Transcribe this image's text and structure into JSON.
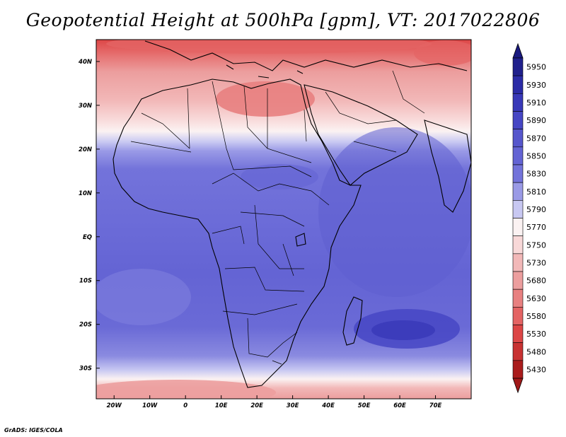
{
  "title": "Geopotential Height at 500hPa [gpm], VT: 2017022806",
  "credit": "GrADS: IGES/COLA",
  "map": {
    "lon_range": [
      -25,
      80
    ],
    "lat_range": [
      -37,
      45
    ],
    "lon_ticks": [
      {
        "lon": -20,
        "label": "20W"
      },
      {
        "lon": -10,
        "label": "10W"
      },
      {
        "lon": 0,
        "label": "0"
      },
      {
        "lon": 10,
        "label": "10E"
      },
      {
        "lon": 20,
        "label": "20E"
      },
      {
        "lon": 30,
        "label": "30E"
      },
      {
        "lon": 40,
        "label": "40E"
      },
      {
        "lon": 50,
        "label": "50E"
      },
      {
        "lon": 60,
        "label": "60E"
      },
      {
        "lon": 70,
        "label": "70E"
      }
    ],
    "lat_ticks": [
      {
        "lat": 40,
        "label": "40N"
      },
      {
        "lat": 30,
        "label": "30N"
      },
      {
        "lat": 20,
        "label": "20N"
      },
      {
        "lat": 10,
        "label": "10N"
      },
      {
        "lat": 0,
        "label": "EQ"
      },
      {
        "lat": -10,
        "label": "10S"
      },
      {
        "lat": -20,
        "label": "20S"
      },
      {
        "lat": -30,
        "label": "30S"
      }
    ]
  },
  "colorbar": {
    "levels": [
      {
        "label": "5950",
        "color": "#20208c"
      },
      {
        "label": "5930",
        "color": "#2b2ba6"
      },
      {
        "label": "5910",
        "color": "#3838b8"
      },
      {
        "label": "5890",
        "color": "#4646c4"
      },
      {
        "label": "5870",
        "color": "#5656cc"
      },
      {
        "label": "5850",
        "color": "#6464d4"
      },
      {
        "label": "5830",
        "color": "#7373da"
      },
      {
        "label": "5810",
        "color": "#9a9ae6"
      },
      {
        "label": "5790",
        "color": "#c8c8f2"
      },
      {
        "label": "5770",
        "color": "#fbf2f2"
      },
      {
        "label": "5750",
        "color": "#f8d8d8"
      },
      {
        "label": "5730",
        "color": "#f2b8b8"
      },
      {
        "label": "5680",
        "color": "#ec9e9e"
      },
      {
        "label": "5630",
        "color": "#e88080"
      },
      {
        "label": "5580",
        "color": "#e46464"
      },
      {
        "label": "5530",
        "color": "#dc4646"
      },
      {
        "label": "5480",
        "color": "#c83232"
      },
      {
        "label": "5430",
        "color": "#aa1c1c"
      }
    ],
    "top_arrow_color": "#1a1a80",
    "bottom_arrow_color": "#a01818"
  }
}
